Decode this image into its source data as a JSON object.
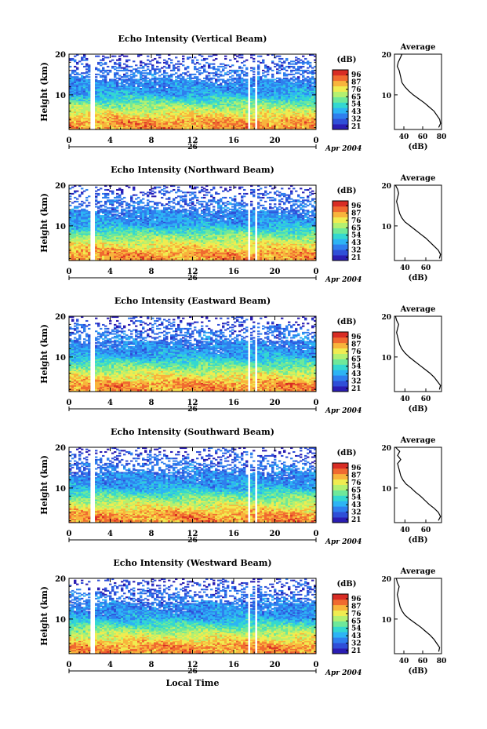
{
  "figure": {
    "x_axis_title": "Local Time",
    "date_label": "Apr 2004",
    "day_label": "26",
    "colorbar_unit": "(dB)",
    "average_title": "Average",
    "average_xlabel": "(dB)",
    "y_axis_label": "Height (km)"
  },
  "colors": {
    "cmap": [
      "#2a1db3",
      "#2f4fd8",
      "#2f7fee",
      "#2db4f4",
      "#34d8d0",
      "#6ee89a",
      "#b4f070",
      "#f0ec50",
      "#f8b43c",
      "#f06a30",
      "#d82c24"
    ]
  },
  "chart_data": [
    {
      "type": "heatmap",
      "title": "Echo Intensity (Vertical Beam)",
      "ylabel": "Height (km)",
      "xlabel": "",
      "x_ticks": [
        "0",
        "4",
        "8",
        "12",
        "16",
        "20",
        "0"
      ],
      "y_ticks": [
        "10",
        "20"
      ],
      "xlim": [
        0,
        24
      ],
      "ylim": [
        1.5,
        20
      ],
      "gaps_hours": [
        [
          2.1,
          2.5
        ],
        [
          17.4,
          17.7
        ],
        [
          18.0,
          18.3
        ]
      ],
      "colorbar": {
        "unit": "(dB)",
        "ticks": [
          "96",
          "87",
          "76",
          "65",
          "54",
          "43",
          "32",
          "21"
        ]
      },
      "average_profile": {
        "title": "Average",
        "xlabel": "(dB)",
        "x_ticks": [
          "40",
          "60",
          "80"
        ],
        "xlim": [
          30,
          80
        ],
        "y_ticks": [
          "10",
          "20"
        ],
        "heights": [
          2,
          3,
          4,
          5,
          6,
          7,
          8,
          9,
          10,
          11,
          12,
          13,
          14,
          15,
          16,
          17,
          18,
          19,
          20
        ],
        "db": [
          77,
          79,
          78,
          75,
          72,
          67,
          62,
          56,
          50,
          45,
          41,
          38,
          37,
          36,
          35,
          33,
          34,
          36,
          38
        ]
      }
    },
    {
      "type": "heatmap",
      "title": "Echo Intensity (Northward Beam)",
      "ylabel": "Height (km)",
      "xlabel": "",
      "x_ticks": [
        "0",
        "4",
        "8",
        "12",
        "16",
        "20",
        "0"
      ],
      "y_ticks": [
        "10",
        "20"
      ],
      "xlim": [
        0,
        24
      ],
      "ylim": [
        1.5,
        20
      ],
      "gaps_hours": [
        [
          2.1,
          2.5
        ],
        [
          17.4,
          17.7
        ],
        [
          18.0,
          18.3
        ]
      ],
      "colorbar": {
        "unit": "(dB)",
        "ticks": [
          "96",
          "87",
          "76",
          "65",
          "54",
          "43",
          "32",
          "21"
        ]
      },
      "average_profile": {
        "title": "Average",
        "xlabel": "(dB)",
        "x_ticks": [
          "40",
          "60"
        ],
        "xlim": [
          30,
          75
        ],
        "y_ticks": [
          "10",
          "20"
        ],
        "heights": [
          2,
          3,
          4,
          5,
          6,
          7,
          8,
          9,
          10,
          11,
          12,
          13,
          14,
          15,
          16,
          17,
          18,
          19,
          20
        ],
        "db": [
          73,
          74,
          72,
          68,
          64,
          60,
          55,
          50,
          45,
          40,
          37,
          35,
          34,
          33,
          32,
          33,
          34,
          33,
          31
        ]
      }
    },
    {
      "type": "heatmap",
      "title": "Echo Intensity (Eastward Beam)",
      "ylabel": "Height (km)",
      "xlabel": "",
      "x_ticks": [
        "0",
        "4",
        "8",
        "12",
        "16",
        "20",
        "0"
      ],
      "y_ticks": [
        "10",
        "20"
      ],
      "xlim": [
        0,
        24
      ],
      "ylim": [
        1.5,
        20
      ],
      "gaps_hours": [
        [
          2.1,
          2.5
        ],
        [
          17.4,
          17.7
        ],
        [
          18.0,
          18.3
        ]
      ],
      "colorbar": {
        "unit": "(dB)",
        "ticks": [
          "96",
          "87",
          "76",
          "65",
          "54",
          "43",
          "32",
          "21"
        ]
      },
      "average_profile": {
        "title": "Average",
        "xlabel": "(dB)",
        "x_ticks": [
          "40",
          "60"
        ],
        "xlim": [
          30,
          75
        ],
        "y_ticks": [
          "10",
          "20"
        ],
        "heights": [
          2,
          3,
          4,
          5,
          6,
          7,
          8,
          9,
          10,
          11,
          12,
          13,
          14,
          15,
          16,
          17,
          18,
          19,
          20
        ],
        "db": [
          73,
          74,
          71,
          68,
          64,
          59,
          54,
          49,
          44,
          40,
          37,
          35,
          34,
          33,
          32,
          33,
          34,
          32,
          31
        ]
      }
    },
    {
      "type": "heatmap",
      "title": "Echo Intensity (Southward Beam)",
      "ylabel": "Height (km)",
      "xlabel": "",
      "x_ticks": [
        "0",
        "4",
        "8",
        "12",
        "16",
        "20",
        "0"
      ],
      "y_ticks": [
        "10",
        "20"
      ],
      "xlim": [
        0,
        24
      ],
      "ylim": [
        1.5,
        20
      ],
      "gaps_hours": [
        [
          2.1,
          2.5
        ],
        [
          17.4,
          17.7
        ],
        [
          18.0,
          18.3
        ]
      ],
      "colorbar": {
        "unit": "(dB)",
        "ticks": [
          "96",
          "87",
          "76",
          "65",
          "54",
          "43",
          "32",
          "21"
        ]
      },
      "average_profile": {
        "title": "Average",
        "xlabel": "(dB)",
        "x_ticks": [
          "40",
          "60"
        ],
        "xlim": [
          30,
          75
        ],
        "y_ticks": [
          "10",
          "20"
        ],
        "heights": [
          2,
          3,
          4,
          5,
          6,
          7,
          8,
          9,
          10,
          11,
          12,
          13,
          14,
          15,
          16,
          17,
          18,
          19,
          20
        ],
        "db": [
          72,
          74,
          72,
          68,
          63,
          59,
          55,
          50,
          46,
          41,
          38,
          36,
          35,
          34,
          33,
          36,
          33,
          35,
          31
        ]
      }
    },
    {
      "type": "heatmap",
      "title": "Echo Intensity (Westward Beam)",
      "ylabel": "Height (km)",
      "xlabel": "Local Time",
      "x_ticks": [
        "0",
        "4",
        "8",
        "12",
        "16",
        "20",
        "0"
      ],
      "y_ticks": [
        "10",
        "20"
      ],
      "xlim": [
        0,
        24
      ],
      "ylim": [
        1.5,
        20
      ],
      "gaps_hours": [
        [
          2.1,
          2.5
        ],
        [
          17.4,
          17.7
        ],
        [
          18.0,
          18.3
        ]
      ],
      "colorbar": {
        "unit": "(dB)",
        "ticks": [
          "96",
          "87",
          "76",
          "65",
          "54",
          "43",
          "32",
          "21"
        ]
      },
      "average_profile": {
        "title": "Average",
        "xlabel": "(dB)",
        "x_ticks": [
          "40",
          "60",
          "80"
        ],
        "xlim": [
          30,
          80
        ],
        "y_ticks": [
          "10",
          "20"
        ],
        "heights": [
          2,
          3,
          4,
          5,
          6,
          7,
          8,
          9,
          10,
          11,
          12,
          13,
          14,
          15,
          16,
          17,
          18,
          19,
          20
        ],
        "db": [
          77,
          78,
          75,
          72,
          68,
          63,
          58,
          52,
          46,
          41,
          38,
          36,
          35,
          34,
          33,
          34,
          35,
          33,
          32
        ]
      }
    }
  ]
}
